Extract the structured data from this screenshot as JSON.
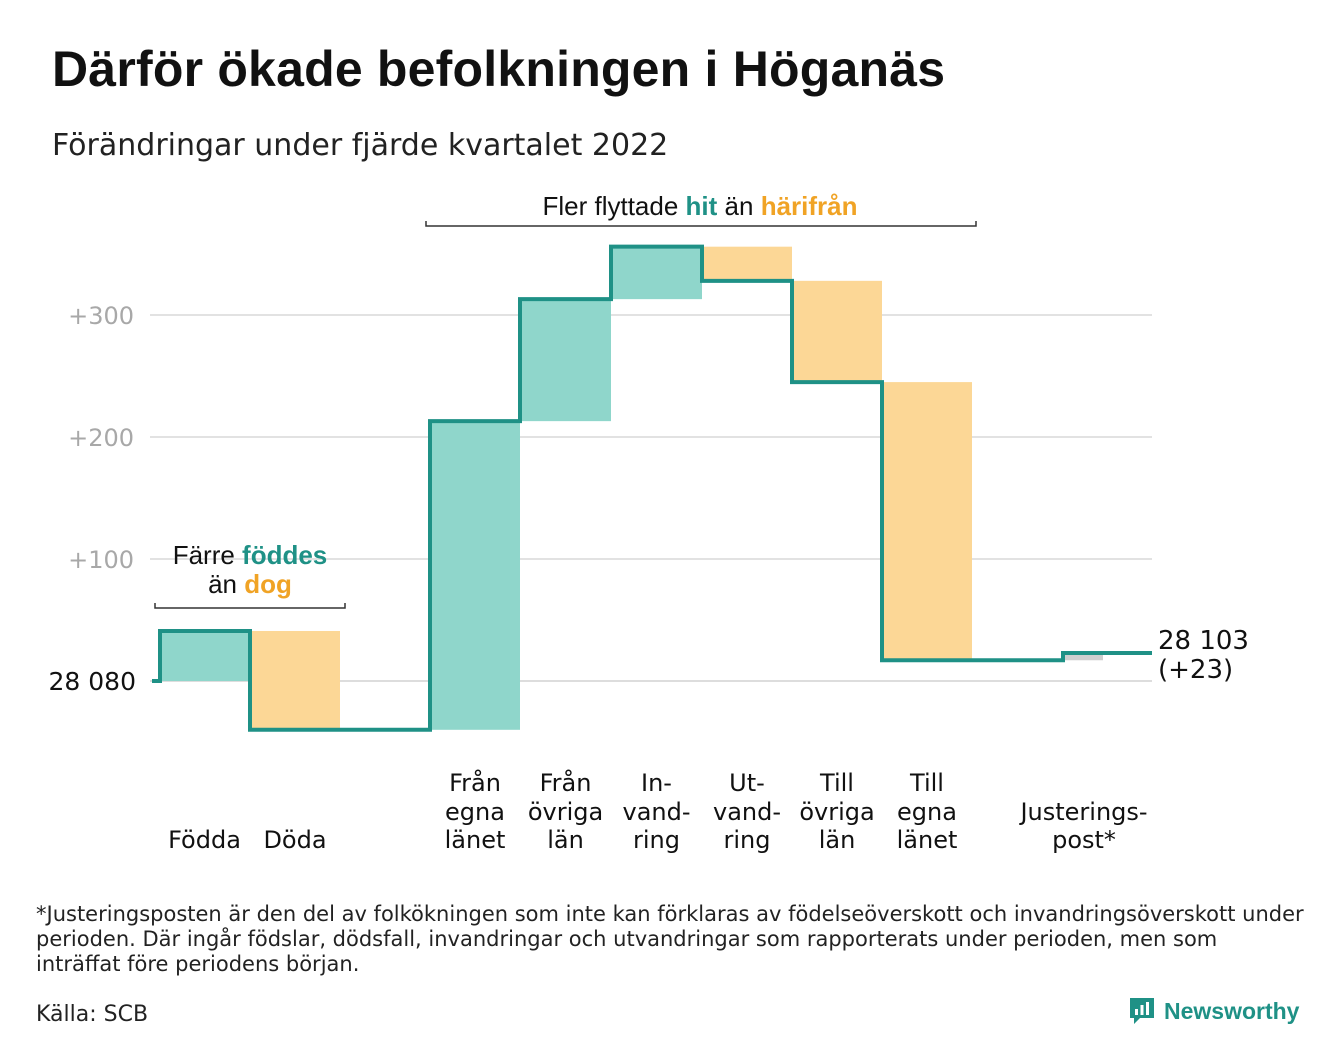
{
  "title": "Därför ökade befolkningen i Höganäs",
  "subtitle": "Förändringar under fjärde kvartalet 2022",
  "chart_data": {
    "type": "waterfall",
    "base": 28080,
    "base_label": "28 080",
    "ylim": [
      -45,
      352
    ],
    "yticks": [
      {
        "value": 100,
        "label": "+100"
      },
      {
        "value": 200,
        "label": "+200"
      },
      {
        "value": 300,
        "label": "+300"
      }
    ],
    "grid": true,
    "colors": {
      "increase": "#8fd6cb",
      "decrease": "#fcd796",
      "adjustment": "#cfcfcf",
      "line": "#1f9186",
      "hit": "#1f9186",
      "harifran": "#f0a325"
    },
    "steps": [
      {
        "category": "Födda",
        "label_lines": [
          "",
          "",
          "Födda"
        ],
        "delta": 41,
        "kind": "increase"
      },
      {
        "category": "Döda",
        "label_lines": [
          "",
          "",
          "Döda"
        ],
        "delta": -81,
        "kind": "decrease"
      },
      {
        "category": "Från egna länet",
        "label_lines": [
          "Från",
          "egna",
          "länet"
        ],
        "delta": 253,
        "kind": "increase"
      },
      {
        "category": "Från övriga län",
        "label_lines": [
          "Från",
          "övriga",
          "län"
        ],
        "delta": 100,
        "kind": "increase"
      },
      {
        "category": "Invandring",
        "label_lines": [
          "In-",
          "vand-",
          "ring"
        ],
        "delta": 43,
        "kind": "increase"
      },
      {
        "category": "Utvandring",
        "label_lines": [
          "Ut-",
          "vand-",
          "ring"
        ],
        "delta": -28,
        "kind": "decrease"
      },
      {
        "category": "Till övriga län",
        "label_lines": [
          "Till",
          "övriga",
          "län"
        ],
        "delta": -83,
        "kind": "decrease"
      },
      {
        "category": "Till egna länet",
        "label_lines": [
          "Till",
          "egna",
          "länet"
        ],
        "delta": -228,
        "kind": "decrease"
      },
      {
        "category": "Justeringspost*",
        "label_lines": [
          "",
          "Justerings-",
          "post*"
        ],
        "delta": 6,
        "kind": "adjustment"
      }
    ],
    "end_value": 28103,
    "end_label": "28 103",
    "end_change_label": "(+23)",
    "annotations": {
      "births": {
        "line1": "Färre",
        "hl1": "föddes",
        "line2": "än",
        "hl2": "dog"
      },
      "migration": {
        "pre": "Fler flyttade",
        "hl1": "hit",
        "mid": "än",
        "hl2": "härifrån"
      }
    }
  },
  "footnote": "*Justeringsposten är den del av folkökningen som inte kan förklaras av födelseöverskott och invandringsöverskott under perioden. Där ingår födslar, dödsfall, invandringar och utvandringar som rapporterats under perioden, men som inträffat före periodens början.",
  "source": "Källa: SCB",
  "brand": "Newsworthy",
  "brand_icon": "newsworthy-logo-icon"
}
